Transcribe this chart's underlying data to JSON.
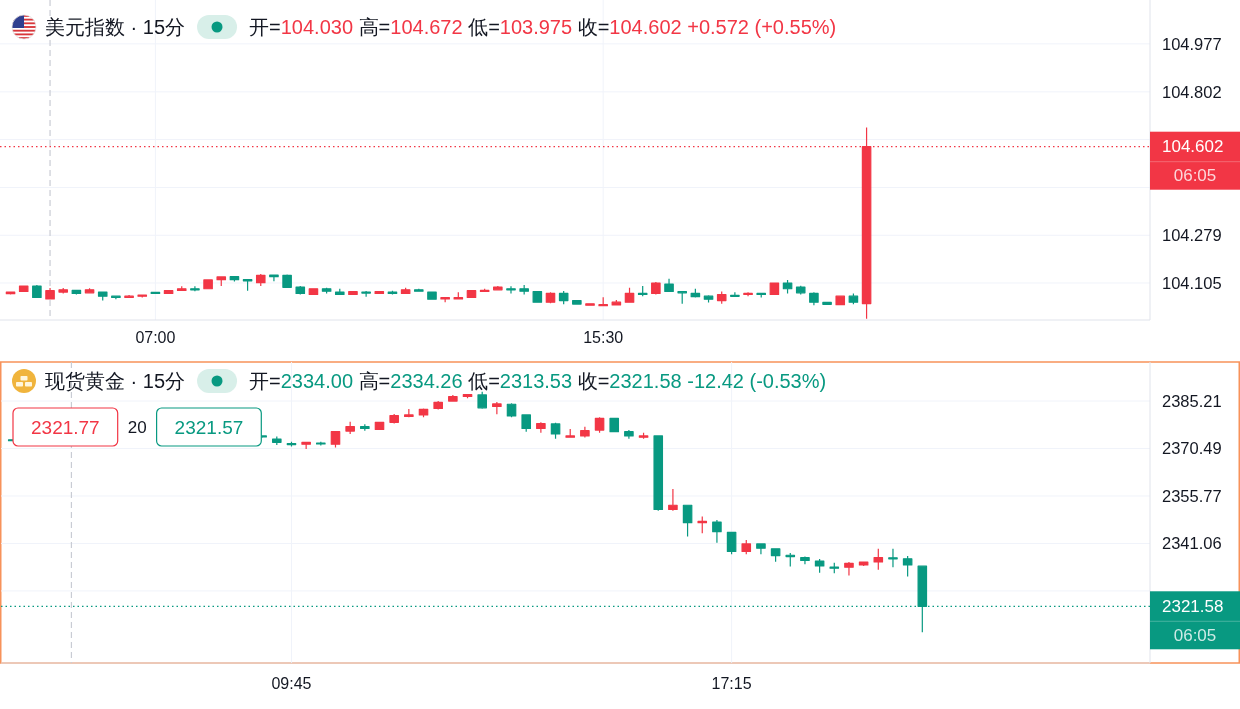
{
  "chart_data": [
    {
      "type": "candlestick",
      "title": "美元指数 · 15分",
      "subtitle": "开=104.030 高=104.672 低=103.975 收=104.602 +0.572 (+0.55%)",
      "x": [
        4.25,
        4.5,
        4.75,
        5,
        5.25,
        5.5,
        5.75,
        6,
        6.25,
        6.5,
        6.75,
        7,
        7.25,
        7.5,
        7.75,
        8,
        8.25,
        8.5,
        8.75,
        9,
        9.25,
        9.5,
        9.75,
        10,
        10.25,
        10.5,
        10.75,
        11,
        11.25,
        11.5,
        11.75,
        12,
        12.25,
        12.5,
        12.75,
        13,
        13.25,
        13.5,
        13.75,
        14,
        14.25,
        14.5,
        14.75,
        15,
        15.25,
        15.5,
        15.75,
        16,
        16.25,
        16.5,
        16.75,
        17,
        17.25,
        17.5,
        17.75,
        18,
        18.25,
        18.5,
        18.75,
        19,
        19.25,
        19.5,
        19.75,
        20,
        20.25,
        20.5
      ],
      "ohlc": [
        [
          104.066,
          104.072,
          104.063,
          104.072
        ],
        [
          104.074,
          104.094,
          104.074,
          104.094
        ],
        [
          104.094,
          104.098,
          104.052,
          104.052
        ],
        [
          104.047,
          104.087,
          104.047,
          104.077
        ],
        [
          104.072,
          104.087,
          104.067,
          104.08
        ],
        [
          104.078,
          104.078,
          104.063,
          104.067
        ],
        [
          104.069,
          104.086,
          104.069,
          104.08
        ],
        [
          104.072,
          104.072,
          104.041,
          104.057
        ],
        [
          104.057,
          104.057,
          104.046,
          104.052
        ],
        [
          104.052,
          104.061,
          104.052,
          104.057
        ],
        [
          104.057,
          104.061,
          104.052,
          104.061
        ],
        [
          104.071,
          104.071,
          104.067,
          104.067
        ],
        [
          104.067,
          104.077,
          104.067,
          104.077
        ],
        [
          104.078,
          104.093,
          104.078,
          104.084
        ],
        [
          104.084,
          104.093,
          104.075,
          104.08
        ],
        [
          104.084,
          104.116,
          104.084,
          104.116
        ],
        [
          104.117,
          104.127,
          104.094,
          104.127
        ],
        [
          104.128,
          104.13,
          104.11,
          104.117
        ],
        [
          104.117,
          104.117,
          104.077,
          104.113
        ],
        [
          104.106,
          104.138,
          104.094,
          104.133
        ],
        [
          104.134,
          104.136,
          104.111,
          104.128
        ],
        [
          104.133,
          104.136,
          104.089,
          104.089
        ],
        [
          104.09,
          104.094,
          104.063,
          104.067
        ],
        [
          104.063,
          104.084,
          104.063,
          104.084
        ],
        [
          104.084,
          104.088,
          104.067,
          104.075
        ],
        [
          104.072,
          104.084,
          104.063,
          104.063
        ],
        [
          104.063,
          104.075,
          104.063,
          104.074
        ],
        [
          104.072,
          104.076,
          104.055,
          104.069
        ],
        [
          104.067,
          104.076,
          104.067,
          104.074
        ],
        [
          104.072,
          104.077,
          104.063,
          104.067
        ],
        [
          104.067,
          104.088,
          104.067,
          104.08
        ],
        [
          104.08,
          104.084,
          104.075,
          104.075
        ],
        [
          104.072,
          104.072,
          104.046,
          104.046
        ],
        [
          104.047,
          104.052,
          104.035,
          104.052
        ],
        [
          104.047,
          104.071,
          104.047,
          104.052
        ],
        [
          104.052,
          104.077,
          104.052,
          104.077
        ],
        [
          104.074,
          104.084,
          104.074,
          104.078
        ],
        [
          104.08,
          104.094,
          104.08,
          104.09
        ],
        [
          104.084,
          104.093,
          104.067,
          104.08
        ],
        [
          104.084,
          104.098,
          104.063,
          104.075
        ],
        [
          104.074,
          104.076,
          104.035,
          104.035
        ],
        [
          104.035,
          104.071,
          104.031,
          104.067
        ],
        [
          104.067,
          104.076,
          104.027,
          104.041
        ],
        [
          104.041,
          104.043,
          104.026,
          104.028
        ],
        [
          104.024,
          104.031,
          104.022,
          104.029
        ],
        [
          104.024,
          104.053,
          104.022,
          104.026
        ],
        [
          104.025,
          104.043,
          104.023,
          104.035
        ],
        [
          104.035,
          104.088,
          104.035,
          104.067
        ],
        [
          104.067,
          104.094,
          104.057,
          104.063
        ],
        [
          104.067,
          104.109,
          104.063,
          104.105
        ],
        [
          104.101,
          104.12,
          104.074,
          104.074
        ],
        [
          104.074,
          104.076,
          104.029,
          104.069
        ],
        [
          104.067,
          104.084,
          104.052,
          104.055
        ],
        [
          104.057,
          104.06,
          104.034,
          104.046
        ],
        [
          104.041,
          104.074,
          104.029,
          104.063
        ],
        [
          104.06,
          104.071,
          104.057,
          104.057
        ],
        [
          104.063,
          104.071,
          104.057,
          104.067
        ],
        [
          104.067,
          104.067,
          104.052,
          104.063
        ],
        [
          104.063,
          104.107,
          104.063,
          104.105
        ],
        [
          104.105,
          104.116,
          104.067,
          104.084
        ],
        [
          104.09,
          104.095,
          104.063,
          104.069
        ],
        [
          104.067,
          104.071,
          104.024,
          104.035
        ],
        [
          104.034,
          104.034,
          104.026,
          104.027
        ],
        [
          104.026,
          104.057,
          104.025,
          104.057
        ],
        [
          104.057,
          104.067,
          104.027,
          104.035
        ],
        [
          104.03,
          104.672,
          103.975,
          104.602
        ]
      ],
      "colors": [
        "#f23645",
        "#f23645",
        "#089981",
        "#f23645",
        "#f23645",
        "#089981",
        "#f23645",
        "#089981",
        "#089981",
        "#f23645",
        "#f23645",
        "#089981",
        "#f23645",
        "#f23645",
        "#089981",
        "#f23645",
        "#f23645",
        "#089981",
        "#089981",
        "#f23645",
        "#089981",
        "#089981",
        "#089981",
        "#f23645",
        "#089981",
        "#089981",
        "#f23645",
        "#089981",
        "#f23645",
        "#089981",
        "#f23645",
        "#089981",
        "#089981",
        "#f23645",
        "#f23645",
        "#f23645",
        "#f23645",
        "#f23645",
        "#089981",
        "#089981",
        "#089981",
        "#f23645",
        "#089981",
        "#089981",
        "#f23645",
        "#f23645",
        "#f23645",
        "#f23645",
        "#089981",
        "#f23645",
        "#089981",
        "#089981",
        "#089981",
        "#089981",
        "#f23645",
        "#089981",
        "#f23645",
        "#089981",
        "#f23645",
        "#089981",
        "#089981",
        "#089981",
        "#089981",
        "#f23645",
        "#089981",
        "#f23645"
      ],
      "xlim": [
        4.05,
        25.88
      ],
      "xticks": [
        {
          "value": 7,
          "label": "07:00"
        },
        {
          "value": 15.5,
          "label": "15:30"
        }
      ],
      "ylim": [
        103.97,
        105.137
      ],
      "yticks": [
        104.105,
        104.279,
        {
          "value": 104.453,
          "label": null
        },
        {
          "value": 104.628,
          "label": null
        },
        104.802,
        104.977
      ],
      "grid": true,
      "ref_lines": [
        {
          "axis": "x",
          "value": 5,
          "color": "#c9ccd4",
          "line_style": "dashed"
        },
        {
          "axis": "y",
          "value": 104.602,
          "label": "104.602",
          "color": "#f23645",
          "line_style": "dotted"
        }
      ],
      "annotations": [
        "06:05"
      ]
    },
    {
      "type": "candlestick",
      "title": "现货黄金 · 15分",
      "subtitle": "开=2334.00 高=2334.26 低=2313.53 收=2321.58 -12.42 (-0.53%)",
      "x": [
        5,
        9.25,
        9.5,
        9.75,
        10,
        10.25,
        10.5,
        10.75,
        11,
        11.25,
        11.5,
        11.75,
        12,
        12.25,
        12.5,
        12.75,
        13,
        13.25,
        13.5,
        13.75,
        14,
        14.25,
        14.5,
        14.75,
        15,
        15.25,
        15.5,
        15.75,
        16,
        16.25,
        16.5,
        16.75,
        17,
        17.25,
        17.5,
        17.75,
        18,
        18.25,
        18.5,
        18.75,
        19,
        19.25,
        19.5,
        19.75,
        20,
        20.25,
        20.5
      ],
      "ohlc": [
        [
          2373.2,
          2373.3,
          2373.0,
          2373.1
        ],
        [
          2374.4,
          2374.6,
          2373.8,
          2374.2
        ],
        [
          2373.4,
          2374.2,
          2371.6,
          2372.4
        ],
        [
          2372.0,
          2372.6,
          2371.1,
          2371.8
        ],
        [
          2371.8,
          2372.4,
          2370.3,
          2372.4
        ],
        [
          2372.2,
          2372.6,
          2371.4,
          2372.0
        ],
        [
          2371.8,
          2375.7,
          2370.8,
          2375.7
        ],
        [
          2375.9,
          2378.8,
          2375.0,
          2377.3
        ],
        [
          2377.3,
          2378.0,
          2376.0,
          2376.7
        ],
        [
          2376.4,
          2378.6,
          2376.4,
          2378.6
        ],
        [
          2378.6,
          2381.2,
          2378.2,
          2380.7
        ],
        [
          2380.4,
          2382.7,
          2380.2,
          2380.9
        ],
        [
          2380.9,
          2382.9,
          2380.2,
          2382.6
        ],
        [
          2382.9,
          2385.2,
          2382.6,
          2384.8
        ],
        [
          2385.2,
          2387.1,
          2385.0,
          2386.6
        ],
        [
          2386.6,
          2387.3,
          2386.1,
          2387.2
        ],
        [
          2387.1,
          2388.1,
          2382.8,
          2383.1
        ],
        [
          2383.5,
          2384.9,
          2381.1,
          2384.3
        ],
        [
          2384.2,
          2384.5,
          2380.2,
          2380.6
        ],
        [
          2380.9,
          2380.9,
          2375.7,
          2376.7
        ],
        [
          2376.7,
          2378.6,
          2375.4,
          2378.2
        ],
        [
          2378.1,
          2378.5,
          2373.5,
          2375.0
        ],
        [
          2374.0,
          2376.5,
          2374.0,
          2374.4
        ],
        [
          2374.4,
          2377.2,
          2373.9,
          2376.0
        ],
        [
          2376.2,
          2380.2,
          2375.4,
          2379.8
        ],
        [
          2379.8,
          2379.8,
          2375.7,
          2375.7
        ],
        [
          2375.7,
          2376.2,
          2373.5,
          2374.4
        ],
        [
          2374.0,
          2375.4,
          2373.5,
          2374.4
        ],
        [
          2374.4,
          2374.4,
          2351.2,
          2351.6
        ],
        [
          2351.6,
          2357.9,
          2351.2,
          2352.9
        ],
        [
          2352.9,
          2352.9,
          2343.2,
          2347.5
        ],
        [
          2347.5,
          2349.4,
          2344.2,
          2347.9
        ],
        [
          2347.7,
          2348.3,
          2341.3,
          2344.7
        ],
        [
          2344.5,
          2344.5,
          2337.7,
          2338.6
        ],
        [
          2338.6,
          2342.1,
          2337.7,
          2340.9
        ],
        [
          2340.9,
          2341.1,
          2337.7,
          2339.6
        ],
        [
          2339.4,
          2339.4,
          2335.4,
          2337.3
        ],
        [
          2337.4,
          2338.1,
          2333.9,
          2337.0
        ],
        [
          2336.7,
          2337.0,
          2334.6,
          2335.8
        ],
        [
          2335.6,
          2336.2,
          2332.0,
          2334.1
        ],
        [
          2333.7,
          2335.1,
          2331.8,
          2333.5
        ],
        [
          2333.7,
          2335.3,
          2331.1,
          2334.9
        ],
        [
          2334.4,
          2335.5,
          2334.1,
          2335.3
        ],
        [
          2335.3,
          2339.4,
          2332.9,
          2336.7
        ],
        [
          2336.6,
          2339.4,
          2333.7,
          2336.3
        ],
        [
          2336.3,
          2337.2,
          2330.8,
          2334.4
        ],
        [
          2334.0,
          2334.26,
          2313.53,
          2321.58
        ]
      ],
      "colors": [
        "#089981",
        "#089981",
        "#089981",
        "#089981",
        "#f23645",
        "#089981",
        "#f23645",
        "#f23645",
        "#089981",
        "#f23645",
        "#f23645",
        "#f23645",
        "#f23645",
        "#f23645",
        "#f23645",
        "#f23645",
        "#089981",
        "#f23645",
        "#089981",
        "#089981",
        "#f23645",
        "#089981",
        "#f23645",
        "#f23645",
        "#f23645",
        "#089981",
        "#089981",
        "#f23645",
        "#089981",
        "#f23645",
        "#089981",
        "#f23645",
        "#089981",
        "#089981",
        "#f23645",
        "#089981",
        "#089981",
        "#089981",
        "#089981",
        "#089981",
        "#089981",
        "#f23645",
        "#f23645",
        "#f23645",
        "#089981",
        "#089981",
        "#089981"
      ],
      "xlim": [
        4.8,
        24.38
      ],
      "xticks": [
        {
          "value": 9.75,
          "label": "09:45"
        },
        {
          "value": 17.25,
          "label": "17:15"
        }
      ],
      "ylim": [
        2304,
        2397.3
      ],
      "yticks": [
        {
          "value": 2326.34,
          "label": null
        },
        2341.06,
        2355.77,
        2370.49,
        2385.21
      ],
      "grid": true,
      "ref_lines": [
        {
          "axis": "x",
          "value": 6,
          "color": "#c9ccd4",
          "line_style": "dashed"
        },
        {
          "axis": "y",
          "value": 2321.58,
          "label": "2321.58",
          "color": "#089981",
          "line_style": "dotted"
        }
      ],
      "annotations": [
        "2321.77",
        "20",
        "2321.57",
        "06:05"
      ]
    }
  ]
}
